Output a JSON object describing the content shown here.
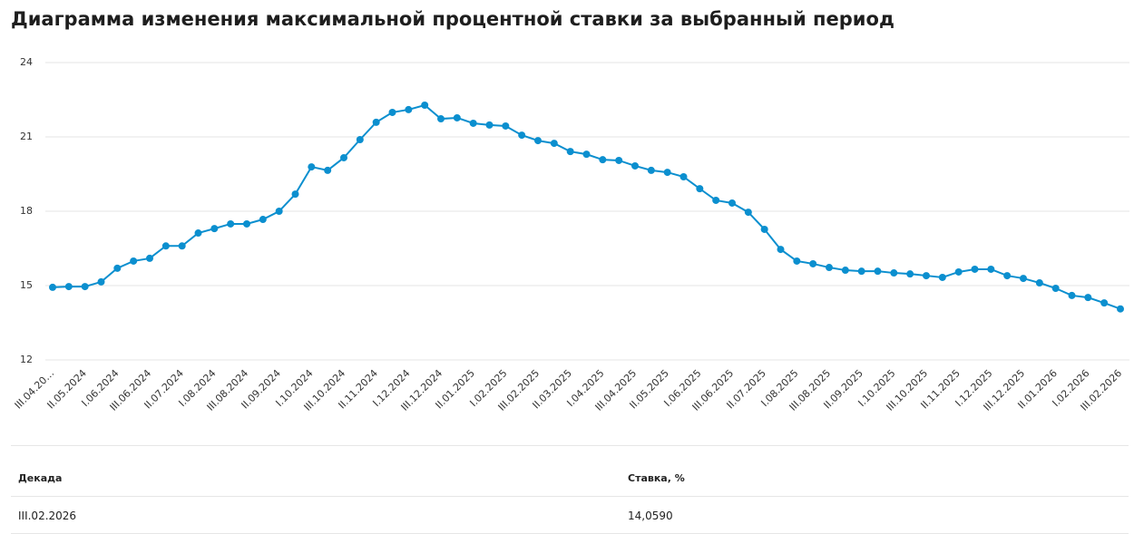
{
  "chart_data": {
    "type": "line",
    "title": "Диаграмма изменения максимальной процентной ставки за выбранный период",
    "categories": [
      "III.04.20…",
      null,
      "II.05.2024",
      null,
      "I.06.2024",
      null,
      "III.06.2024",
      null,
      "II.07.2024",
      null,
      "I.08.2024",
      null,
      "III.08.2024",
      null,
      "II.09.2024",
      null,
      "I.10.2024",
      null,
      "III.10.2024",
      null,
      "II.11.2024",
      null,
      "I.12.2024",
      null,
      "III.12.2024",
      null,
      "II.01.2025",
      null,
      "I.02.2025",
      null,
      "III.02.2025",
      null,
      "II.03.2025",
      null,
      "I.04.2025",
      null,
      "III.04.2025",
      null,
      "II.05.2025",
      null,
      "I.06.2025",
      null,
      "III.06.2025",
      null,
      "II.07.2025",
      null,
      "I.08.2025",
      null,
      "III.08.2025",
      null,
      "II.09.2025",
      null,
      "I.10.2025",
      null,
      "III.10.2025",
      null,
      "II.11.2025",
      null,
      "I.12.2025",
      null,
      "III.12.2025",
      null,
      "II.01.2026",
      null,
      "I.02.2026",
      null,
      "III.02.2026"
    ],
    "series": [
      {
        "color": "#0b8fcf",
        "values": [
          14.93,
          14.96,
          14.96,
          15.15,
          15.7,
          15.99,
          16.1,
          16.6,
          16.6,
          17.12,
          17.3,
          17.49,
          17.49,
          17.67,
          18.0,
          18.69,
          19.79,
          19.65,
          20.16,
          20.89,
          21.59,
          21.99,
          22.1,
          22.28,
          21.73,
          21.77,
          21.55,
          21.48,
          21.44,
          21.07,
          20.85,
          20.74,
          20.41,
          20.3,
          20.08,
          20.05,
          19.83,
          19.65,
          19.57,
          19.39,
          18.91,
          18.44,
          18.33,
          17.96,
          17.27,
          16.46,
          15.99,
          15.88,
          15.73,
          15.62,
          15.58,
          15.58,
          15.51,
          15.47,
          15.4,
          15.33,
          15.55,
          15.66,
          15.66,
          15.4,
          15.29,
          15.11,
          14.89,
          14.6,
          14.52,
          14.3,
          14.059
        ]
      }
    ],
    "ylim": [
      12,
      24
    ],
    "yticks": [
      12,
      15,
      18,
      21,
      24
    ],
    "grid": true
  },
  "table": {
    "header": [
      "Декада",
      "Ставка, %"
    ],
    "rows": [
      [
        "III.02.2026",
        "14,0590"
      ]
    ]
  }
}
